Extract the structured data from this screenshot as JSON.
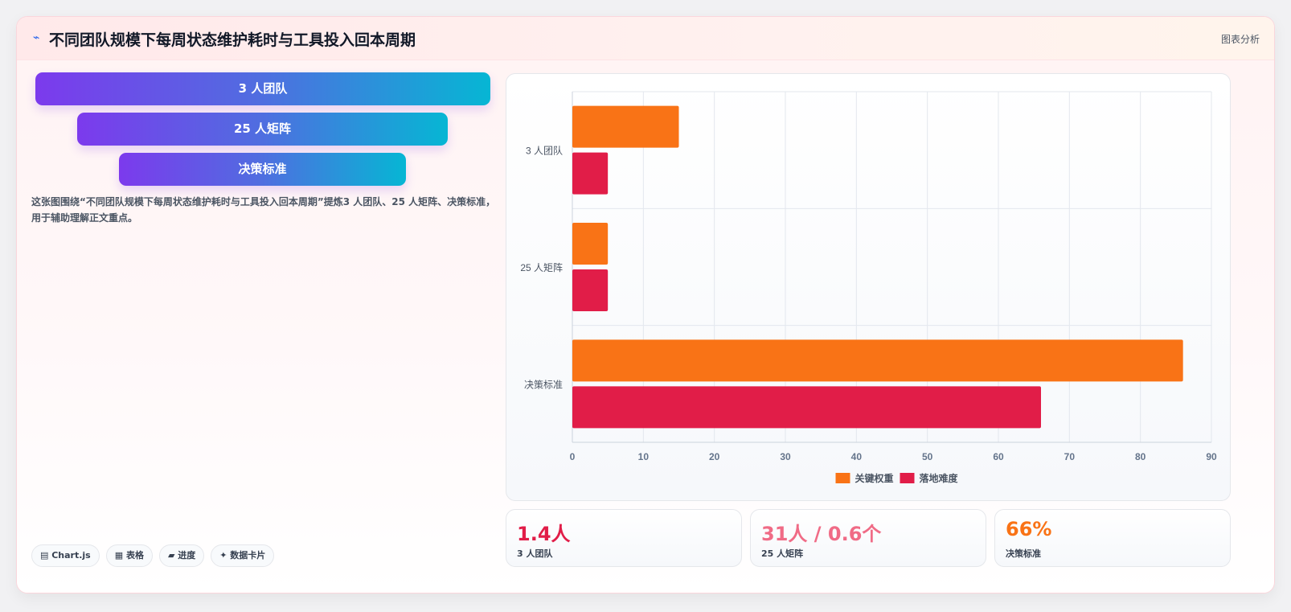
{
  "header": {
    "icon": "chart-line-icon",
    "title": "不同团队规模下每周状态维护耗时与工具投入回本周期",
    "right_label": "图表分析"
  },
  "pills": [
    "3 人团队",
    "25 人矩阵",
    "决策标准"
  ],
  "description": "这张图围绕“不同团队规模下每周状态维护耗时与工具投入回本周期”提炼3 人团队、25 人矩阵、决策标准，用于辅助理解正文重点。",
  "tags": [
    "▤ Chart.js",
    "▦ 表格",
    "▰ 进度",
    "✦ 数据卡片"
  ],
  "stats": [
    {
      "value": "1.4人",
      "label": "3 人团队",
      "color": "#e11d48"
    },
    {
      "value": "31人 / 0.6个",
      "label": "25 人矩阵",
      "color": "#f06b86"
    },
    {
      "value": "66%",
      "label": "决策标准",
      "color": "#f97316"
    }
  ],
  "chart_data": {
    "type": "bar",
    "orientation": "horizontal",
    "categories": [
      "3 人团队",
      "25 人矩阵",
      "决策标准"
    ],
    "series": [
      {
        "name": "关键权重",
        "values": [
          15,
          5,
          86
        ],
        "color": "#f97316"
      },
      {
        "name": "落地难度",
        "values": [
          5,
          5,
          66
        ],
        "color": "#e11d48"
      }
    ],
    "xlim": [
      0,
      90
    ],
    "xticks": [
      0,
      10,
      20,
      30,
      40,
      50,
      60,
      70,
      80,
      90
    ],
    "grid": true,
    "legend": "bottom"
  }
}
